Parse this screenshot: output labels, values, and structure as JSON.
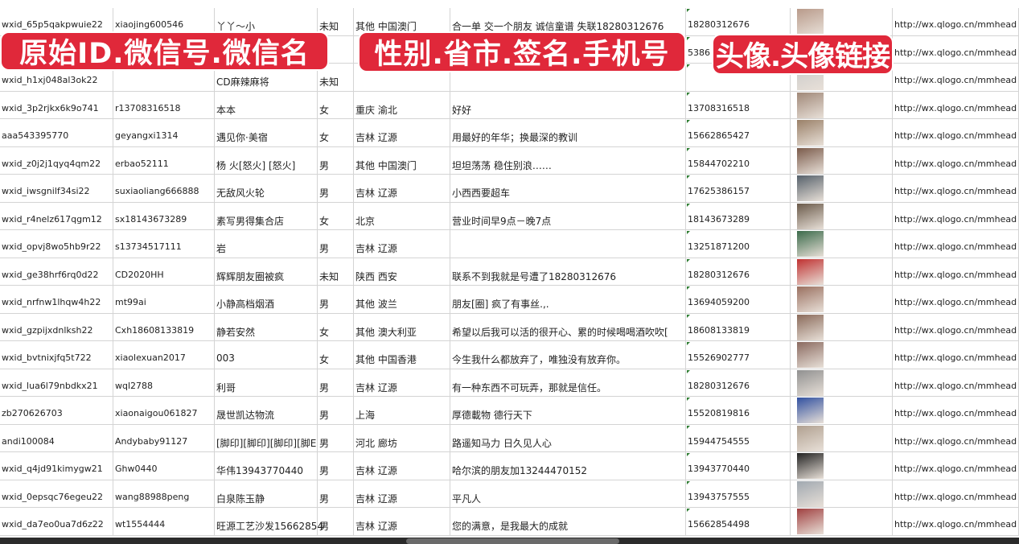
{
  "overlay_labels": [
    "原始ID.微信号.微信名",
    "性别.省市.签名.手机号",
    "头像.头像链接"
  ],
  "avatar_colors": [
    "#b89a8a",
    "#8a94b0",
    "#c9c9c9",
    "#a08878",
    "#9a8068",
    "#7a5a4a",
    "#55606a",
    "#6a5a4a",
    "#3a6a4a",
    "#c03030",
    "#9a7060",
    "#8a6a5a",
    "#8a6a60",
    "#909090",
    "#3050a0",
    "#b0a090",
    "#222222",
    "#a0a8b0",
    "#a04040"
  ],
  "rows": [
    [
      "wxid_65p5qakpwuie22",
      "xiaojing600546",
      "丫丫～小",
      "未知",
      "其他 中国澳门",
      "合一单 交一个朋友 诚信童谱 失联18280312676",
      "18280312676",
      "http://wx.qlogo.cn/mmhead"
    ],
    [
      "",
      "",
      "",
      "",
      "",
      "",
      "5386",
      "http://wx.qlogo.cn/mmhead"
    ],
    [
      "wxid_h1xj048al3ok22",
      "",
      "CD麻辣麻将",
      "未知",
      "",
      "",
      "",
      "http://wx.qlogo.cn/mmhead"
    ],
    [
      "wxid_3p2rjkx6k9o741",
      "r13708316518",
      "本本",
      "女",
      "重庆 渝北",
      "好好",
      "13708316518",
      "http://wx.qlogo.cn/mmhead"
    ],
    [
      "aaa543395770",
      "geyangxi1314",
      "遇见你·美宿",
      "女",
      "吉林 辽源",
      "用最好的年华；换最深的教训",
      "15662865427",
      "http://wx.qlogo.cn/mmhead"
    ],
    [
      "wxid_z0j2j1qyq4qm22",
      "erbao52111",
      "杨 火[怒火] [怒火]",
      "男",
      "其他 中国澳门",
      "坦坦荡荡 稳住别浪……",
      "15844702210",
      "http://wx.qlogo.cn/mmhead"
    ],
    [
      "wxid_iwsgnilf34si22",
      "suxiaoliang666888",
      "无敌风火轮",
      "男",
      "吉林 辽源",
      "小西西要超车",
      "17625386157",
      "http://wx.qlogo.cn/mmhead"
    ],
    [
      "wxid_r4nelz617qgm12",
      "sx18143673289",
      "素写男得集合店",
      "女",
      "北京",
      "营业时间早9点－晚7点",
      "18143673289",
      "http://wx.qlogo.cn/mmhead"
    ],
    [
      "wxid_opvj8wo5hb9r22",
      "s13734517111",
      "岩",
      "男",
      "吉林 辽源",
      "",
      "13251871200",
      "http://wx.qlogo.cn/mmhead"
    ],
    [
      "wxid_ge38hrf6rq0d22",
      "CD2020HH",
      "辉辉朋友圈被疯",
      "未知",
      "陕西 西安",
      "联系不到我就是号遭了18280312676",
      "18280312676",
      "http://wx.qlogo.cn/mmhead"
    ],
    [
      "wxid_nrfnw1lhqw4h22",
      "mt99ai",
      "小静高档烟酒",
      "男",
      "其他 波兰",
      "朋友[圈] 疯了有事丝.,.",
      "13694059200",
      "http://wx.qlogo.cn/mmhead"
    ],
    [
      "wxid_gzpijxdnlksh22",
      "Cxh18608133819",
      "静若安然",
      "女",
      "其他 澳大利亚",
      "希望以后我可以活的很开心、累的时候喝喝酒吹吹[",
      "18608133819",
      "http://wx.qlogo.cn/mmhead"
    ],
    [
      "wxid_bvtnixjfq5t722",
      "xiaolexuan2017",
      "003",
      "女",
      "其他 中国香港",
      "今生我什么都放弃了，唯独没有放弃你。",
      "15526902777",
      "http://wx.qlogo.cn/mmhead"
    ],
    [
      "wxid_lua6l79nbdkx21",
      "wql2788",
      "利哥",
      "男",
      "吉林 辽源",
      "有一种东西不可玩弄，那就是信任。",
      "18280312676",
      "http://wx.qlogo.cn/mmhead"
    ],
    [
      "zb270626703",
      "xiaonaigou061827",
      "晟世凯达物流",
      "男",
      "上海",
      "厚德載物 德行天下",
      "15520819816",
      "http://wx.qlogo.cn/mmhead"
    ],
    [
      "andi100084",
      "Andybaby91127",
      "[脚印][脚印][脚印][脚E",
      "男",
      "河北 廊坊",
      "路遥知马力 日久见人心",
      "15944754555",
      "http://wx.qlogo.cn/mmhead"
    ],
    [
      "wxid_q4jd91kimygw21",
      "Ghw0440",
      "华伟13943770440",
      "男",
      "吉林 辽源",
      "哈尔滨的朋友加13244470152",
      "13943770440",
      "http://wx.qlogo.cn/mmhead"
    ],
    [
      "wxid_0epsqc76egeu22",
      "wang88988peng",
      "白泉陈玉静",
      "男",
      "吉林 辽源",
      "平凡人",
      "13943757555",
      "http://wx.qlogo.cn/mmhead"
    ],
    [
      "wxid_da7eo0ua7d6z22",
      "wt1554444",
      "旺源工艺沙发15662854",
      "男",
      "吉林 辽源",
      "您的满意，是我最大的成就",
      "15662854498",
      "http://wx.qlogo.cn/mmhead"
    ]
  ]
}
